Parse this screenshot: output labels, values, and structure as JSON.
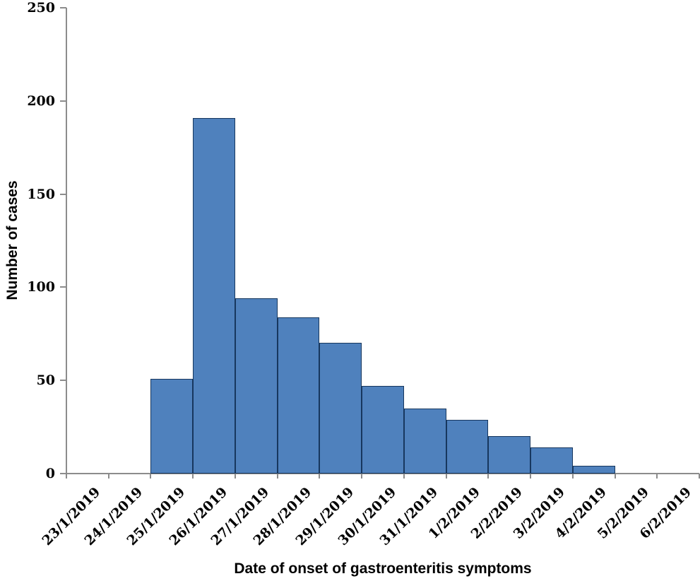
{
  "chart_data": {
    "type": "bar",
    "title": "",
    "xlabel": "Date of onset of gastroenteritis symptoms",
    "ylabel": "Number of cases",
    "categories": [
      "23/1/2019",
      "24/1/2019",
      "25/1/2019",
      "26/1/2019",
      "27/1/2019",
      "28/1/2019",
      "29/1/2019",
      "30/1/2019",
      "31/1/2019",
      "1/2/2019",
      "2/2/2019",
      "3/2/2019",
      "4/2/2019",
      "5/2/2019",
      "6/2/2019"
    ],
    "values": [
      0,
      0,
      51,
      191,
      94,
      84,
      70,
      47,
      35,
      29,
      20,
      14,
      4,
      0,
      0
    ],
    "ylim": [
      0,
      250
    ],
    "yticks": [
      0,
      50,
      100,
      150,
      200,
      250
    ],
    "grid": false,
    "legend": false,
    "bar_gap": 0,
    "colors": {
      "bar_fill": "#4f81bd",
      "bar_border": "#17375e",
      "axis_line": "#8c8c8c",
      "text": "#000000",
      "background": "#ffffff"
    }
  }
}
